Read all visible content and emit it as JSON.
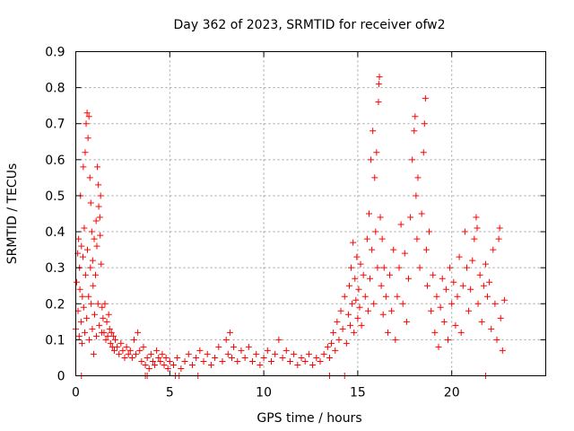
{
  "chart_data": {
    "type": "scatter",
    "title": "Day 362 of 2023, SRMTID for receiver ofw2",
    "xlabel": "GPS time / hours",
    "ylabel": "SRMTID / TECUs",
    "xlim": [
      0,
      25
    ],
    "ylim": [
      0,
      0.9
    ],
    "xticks": [
      0,
      5,
      10,
      15,
      20
    ],
    "yticks": [
      0,
      0.1,
      0.2,
      0.3,
      0.4,
      0.5,
      0.6,
      0.7,
      0.8,
      0.9
    ],
    "xtick_labels": [
      "0",
      "5",
      "10",
      "15",
      "20"
    ],
    "ytick_labels": [
      "0",
      "0.1",
      "0.2",
      "0.3",
      "0.4",
      "0.5",
      "0.6",
      "0.7",
      "0.8",
      "0.9"
    ],
    "grid": true,
    "marker": "+",
    "color": "#ff0000",
    "series": [
      {
        "name": "SRMTID",
        "points": [
          [
            0.0,
            0.13
          ],
          [
            0.05,
            0.26
          ],
          [
            0.1,
            0.34
          ],
          [
            0.12,
            0.18
          ],
          [
            0.15,
            0.38
          ],
          [
            0.18,
            0.11
          ],
          [
            0.2,
            0.3
          ],
          [
            0.22,
            0.24
          ],
          [
            0.25,
            0.5
          ],
          [
            0.28,
            0.15
          ],
          [
            0.3,
            0.36
          ],
          [
            0.33,
            0.09
          ],
          [
            0.35,
            0.22
          ],
          [
            0.38,
            0.33
          ],
          [
            0.4,
            0.58
          ],
          [
            0.42,
            0.19
          ],
          [
            0.45,
            0.41
          ],
          [
            0.48,
            0.12
          ],
          [
            0.5,
            0.62
          ],
          [
            0.52,
            0.28
          ],
          [
            0.55,
            0.7
          ],
          [
            0.58,
            0.16
          ],
          [
            0.6,
            0.73
          ],
          [
            0.62,
            0.35
          ],
          [
            0.65,
            0.66
          ],
          [
            0.68,
            0.22
          ],
          [
            0.7,
            0.72
          ],
          [
            0.72,
            0.1
          ],
          [
            0.75,
            0.55
          ],
          [
            0.78,
            0.3
          ],
          [
            0.8,
            0.48
          ],
          [
            0.82,
            0.2
          ],
          [
            0.85,
            0.4
          ],
          [
            0.88,
            0.13
          ],
          [
            0.9,
            0.32
          ],
          [
            0.92,
            0.25
          ],
          [
            0.95,
            0.06
          ],
          [
            0.98,
            0.38
          ],
          [
            1.0,
            0.17
          ],
          [
            1.05,
            0.28
          ],
          [
            1.08,
            0.43
          ],
          [
            1.1,
            0.11
          ],
          [
            1.12,
            0.36
          ],
          [
            1.15,
            0.58
          ],
          [
            1.18,
            0.2
          ],
          [
            1.2,
            0.53
          ],
          [
            1.22,
            0.47
          ],
          [
            1.25,
            0.14
          ],
          [
            1.28,
            0.44
          ],
          [
            1.3,
            0.39
          ],
          [
            1.32,
            0.5
          ],
          [
            1.35,
            0.31
          ],
          [
            1.38,
            0.12
          ],
          [
            1.4,
            0.19
          ],
          [
            1.45,
            0.16
          ],
          [
            1.5,
            0.12
          ],
          [
            1.55,
            0.2
          ],
          [
            1.6,
            0.1
          ],
          [
            1.65,
            0.15
          ],
          [
            1.7,
            0.11
          ],
          [
            1.75,
            0.17
          ],
          [
            1.8,
            0.13
          ],
          [
            1.85,
            0.09
          ],
          [
            1.9,
            0.12
          ],
          [
            1.95,
            0.08
          ],
          [
            2.0,
            0.11
          ],
          [
            2.05,
            0.07
          ],
          [
            2.1,
            0.1
          ],
          [
            2.2,
            0.08
          ],
          [
            2.3,
            0.06
          ],
          [
            2.4,
            0.09
          ],
          [
            2.5,
            0.07
          ],
          [
            2.6,
            0.05
          ],
          [
            2.7,
            0.08
          ],
          [
            2.8,
            0.06
          ],
          [
            2.9,
            0.07
          ],
          [
            3.0,
            0.05
          ],
          [
            3.1,
            0.1
          ],
          [
            3.2,
            0.06
          ],
          [
            3.3,
            0.12
          ],
          [
            3.4,
            0.07
          ],
          [
            3.5,
            0.04
          ],
          [
            3.6,
            0.08
          ],
          [
            3.7,
            0.03
          ],
          [
            3.8,
            0.05
          ],
          [
            3.9,
            0.02
          ],
          [
            4.0,
            0.06
          ],
          [
            4.1,
            0.04
          ],
          [
            4.2,
            0.03
          ],
          [
            4.3,
            0.07
          ],
          [
            4.4,
            0.05
          ],
          [
            4.5,
            0.04
          ],
          [
            4.6,
            0.06
          ],
          [
            4.7,
            0.03
          ],
          [
            4.8,
            0.05
          ],
          [
            4.9,
            0.02
          ],
          [
            5.0,
            0.04
          ],
          [
            5.2,
            0.03
          ],
          [
            5.4,
            0.05
          ],
          [
            5.6,
            0.02
          ],
          [
            5.8,
            0.04
          ],
          [
            6.0,
            0.06
          ],
          [
            6.2,
            0.03
          ],
          [
            6.4,
            0.05
          ],
          [
            6.6,
            0.07
          ],
          [
            6.8,
            0.04
          ],
          [
            7.0,
            0.06
          ],
          [
            7.2,
            0.03
          ],
          [
            7.4,
            0.05
          ],
          [
            7.6,
            0.08
          ],
          [
            7.8,
            0.04
          ],
          [
            8.0,
            0.1
          ],
          [
            8.1,
            0.06
          ],
          [
            8.2,
            0.12
          ],
          [
            8.3,
            0.05
          ],
          [
            8.4,
            0.08
          ],
          [
            8.6,
            0.04
          ],
          [
            8.8,
            0.07
          ],
          [
            9.0,
            0.05
          ],
          [
            9.2,
            0.08
          ],
          [
            9.4,
            0.04
          ],
          [
            9.6,
            0.06
          ],
          [
            9.8,
            0.03
          ],
          [
            10.0,
            0.05
          ],
          [
            10.2,
            0.07
          ],
          [
            10.4,
            0.04
          ],
          [
            10.6,
            0.06
          ],
          [
            10.8,
            0.1
          ],
          [
            11.0,
            0.05
          ],
          [
            11.2,
            0.07
          ],
          [
            11.4,
            0.04
          ],
          [
            11.6,
            0.06
          ],
          [
            11.8,
            0.03
          ],
          [
            12.0,
            0.05
          ],
          [
            12.2,
            0.04
          ],
          [
            12.4,
            0.06
          ],
          [
            12.6,
            0.03
          ],
          [
            12.8,
            0.05
          ],
          [
            13.0,
            0.04
          ],
          [
            13.2,
            0.06
          ],
          [
            13.4,
            0.08
          ],
          [
            13.5,
            0.05
          ],
          [
            13.6,
            0.09
          ],
          [
            13.7,
            0.12
          ],
          [
            13.8,
            0.07
          ],
          [
            13.9,
            0.15
          ],
          [
            14.0,
            0.1
          ],
          [
            14.1,
            0.18
          ],
          [
            14.2,
            0.13
          ],
          [
            14.3,
            0.22
          ],
          [
            14.4,
            0.09
          ],
          [
            14.5,
            0.17
          ],
          [
            14.55,
            0.25
          ],
          [
            14.6,
            0.14
          ],
          [
            14.65,
            0.3
          ],
          [
            14.7,
            0.2
          ],
          [
            14.75,
            0.37
          ],
          [
            14.8,
            0.12
          ],
          [
            14.85,
            0.27
          ],
          [
            14.9,
            0.21
          ],
          [
            14.95,
            0.33
          ],
          [
            15.0,
            0.16
          ],
          [
            15.05,
            0.24
          ],
          [
            15.1,
            0.19
          ],
          [
            15.15,
            0.31
          ],
          [
            15.2,
            0.14
          ],
          [
            15.3,
            0.28
          ],
          [
            15.4,
            0.22
          ],
          [
            15.5,
            0.38
          ],
          [
            15.55,
            0.18
          ],
          [
            15.6,
            0.45
          ],
          [
            15.65,
            0.27
          ],
          [
            15.7,
            0.6
          ],
          [
            15.75,
            0.35
          ],
          [
            15.8,
            0.68
          ],
          [
            15.85,
            0.2
          ],
          [
            15.9,
            0.55
          ],
          [
            15.95,
            0.4
          ],
          [
            16.0,
            0.62
          ],
          [
            16.05,
            0.3
          ],
          [
            16.1,
            0.76
          ],
          [
            16.12,
            0.81
          ],
          [
            16.15,
            0.83
          ],
          [
            16.2,
            0.44
          ],
          [
            16.25,
            0.25
          ],
          [
            16.3,
            0.38
          ],
          [
            16.35,
            0.17
          ],
          [
            16.4,
            0.3
          ],
          [
            16.5,
            0.22
          ],
          [
            16.6,
            0.12
          ],
          [
            16.7,
            0.28
          ],
          [
            16.8,
            0.18
          ],
          [
            16.9,
            0.35
          ],
          [
            17.0,
            0.1
          ],
          [
            17.1,
            0.22
          ],
          [
            17.2,
            0.3
          ],
          [
            17.3,
            0.42
          ],
          [
            17.4,
            0.2
          ],
          [
            17.5,
            0.34
          ],
          [
            17.6,
            0.15
          ],
          [
            17.7,
            0.27
          ],
          [
            17.8,
            0.44
          ],
          [
            17.9,
            0.6
          ],
          [
            18.0,
            0.68
          ],
          [
            18.05,
            0.72
          ],
          [
            18.1,
            0.5
          ],
          [
            18.15,
            0.38
          ],
          [
            18.2,
            0.55
          ],
          [
            18.3,
            0.3
          ],
          [
            18.4,
            0.45
          ],
          [
            18.5,
            0.62
          ],
          [
            18.55,
            0.7
          ],
          [
            18.6,
            0.77
          ],
          [
            18.65,
            0.35
          ],
          [
            18.7,
            0.25
          ],
          [
            18.8,
            0.4
          ],
          [
            18.9,
            0.18
          ],
          [
            19.0,
            0.28
          ],
          [
            19.1,
            0.12
          ],
          [
            19.2,
            0.22
          ],
          [
            19.3,
            0.08
          ],
          [
            19.4,
            0.19
          ],
          [
            19.5,
            0.27
          ],
          [
            19.6,
            0.15
          ],
          [
            19.7,
            0.24
          ],
          [
            19.8,
            0.1
          ],
          [
            19.9,
            0.3
          ],
          [
            20.0,
            0.2
          ],
          [
            20.1,
            0.26
          ],
          [
            20.2,
            0.14
          ],
          [
            20.3,
            0.22
          ],
          [
            20.4,
            0.33
          ],
          [
            20.5,
            0.12
          ],
          [
            20.6,
            0.25
          ],
          [
            20.7,
            0.4
          ],
          [
            20.8,
            0.3
          ],
          [
            20.9,
            0.18
          ],
          [
            21.0,
            0.24
          ],
          [
            21.1,
            0.32
          ],
          [
            21.2,
            0.38
          ],
          [
            21.3,
            0.44
          ],
          [
            21.35,
            0.41
          ],
          [
            21.4,
            0.2
          ],
          [
            21.5,
            0.28
          ],
          [
            21.6,
            0.15
          ],
          [
            21.7,
            0.25
          ],
          [
            21.8,
            0.31
          ],
          [
            21.9,
            0.22
          ],
          [
            22.0,
            0.26
          ],
          [
            22.1,
            0.13
          ],
          [
            22.2,
            0.35
          ],
          [
            22.3,
            0.2
          ],
          [
            22.4,
            0.1
          ],
          [
            22.5,
            0.38
          ],
          [
            22.55,
            0.41
          ],
          [
            22.6,
            0.16
          ],
          [
            22.7,
            0.07
          ],
          [
            22.8,
            0.21
          ],
          [
            0.3,
            0.0
          ],
          [
            3.7,
            0.0
          ],
          [
            3.8,
            0.0
          ],
          [
            5.3,
            0.0
          ],
          [
            5.5,
            0.0
          ],
          [
            6.5,
            0.0
          ],
          [
            13.5,
            0.0
          ],
          [
            14.3,
            0.0
          ],
          [
            21.8,
            0.0
          ]
        ]
      }
    ]
  }
}
